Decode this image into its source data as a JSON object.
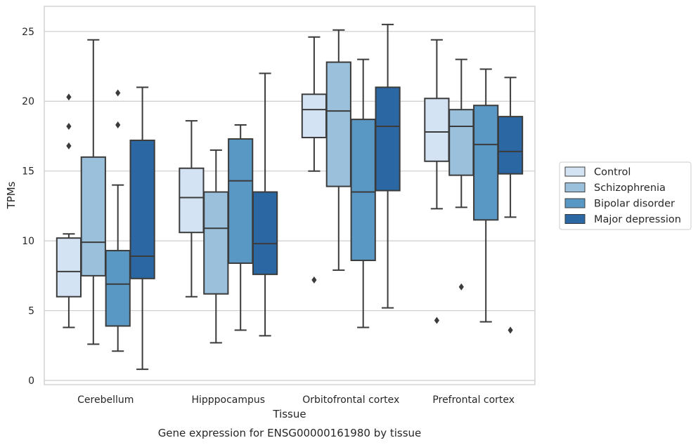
{
  "chart_data": {
    "type": "box",
    "xlabel": "Tissue",
    "ylabel": "TPMs",
    "caption": "Gene expression for ENSG00000161980 by tissue",
    "ylim": [
      -0.3,
      26.8
    ],
    "yticks": [
      0,
      5,
      10,
      15,
      20,
      25
    ],
    "grid": "horizontal",
    "legend_position": "right",
    "categories": [
      "Cerebellum",
      "Hipppocampus",
      "Orbitofrontal cortex",
      "Prefrontal cortex"
    ],
    "series": [
      {
        "name": "Control",
        "color": "#d4e3f3",
        "boxes": [
          {
            "whisker_low": 3.8,
            "q1": 6.0,
            "median": 7.8,
            "q3": 10.2,
            "whisker_high": 10.5,
            "outliers": [
              16.8,
              18.2,
              20.3
            ]
          },
          {
            "whisker_low": 6.0,
            "q1": 10.6,
            "median": 13.1,
            "q3": 15.2,
            "whisker_high": 18.6,
            "outliers": []
          },
          {
            "whisker_low": 15.0,
            "q1": 17.4,
            "median": 19.4,
            "q3": 20.5,
            "whisker_high": 24.6,
            "outliers": [
              7.2
            ]
          },
          {
            "whisker_low": 12.3,
            "q1": 15.7,
            "median": 17.8,
            "q3": 20.2,
            "whisker_high": 24.4,
            "outliers": [
              4.3
            ]
          }
        ]
      },
      {
        "name": "Schizophrenia",
        "color": "#9ac0db",
        "boxes": [
          {
            "whisker_low": 2.6,
            "q1": 7.5,
            "median": 9.9,
            "q3": 16.0,
            "whisker_high": 24.4,
            "outliers": []
          },
          {
            "whisker_low": 2.7,
            "q1": 6.2,
            "median": 10.9,
            "q3": 13.5,
            "whisker_high": 16.5,
            "outliers": []
          },
          {
            "whisker_low": 7.9,
            "q1": 13.9,
            "median": 19.3,
            "q3": 22.8,
            "whisker_high": 25.1,
            "outliers": []
          },
          {
            "whisker_low": 12.4,
            "q1": 14.7,
            "median": 18.2,
            "q3": 19.4,
            "whisker_high": 23.0,
            "outliers": [
              6.7
            ]
          }
        ]
      },
      {
        "name": "Bipolar disorder",
        "color": "#5998c5",
        "boxes": [
          {
            "whisker_low": 2.1,
            "q1": 3.9,
            "median": 6.9,
            "q3": 9.3,
            "whisker_high": 14.0,
            "outliers": [
              18.3,
              20.6
            ]
          },
          {
            "whisker_low": 3.6,
            "q1": 8.4,
            "median": 14.3,
            "q3": 17.3,
            "whisker_high": 18.3,
            "outliers": []
          },
          {
            "whisker_low": 3.8,
            "q1": 8.6,
            "median": 13.5,
            "q3": 18.7,
            "whisker_high": 23.0,
            "outliers": []
          },
          {
            "whisker_low": 4.2,
            "q1": 11.5,
            "median": 16.9,
            "q3": 19.7,
            "whisker_high": 22.3,
            "outliers": []
          }
        ]
      },
      {
        "name": "Major depression",
        "color": "#2a67a3",
        "boxes": [
          {
            "whisker_low": 0.8,
            "q1": 7.3,
            "median": 8.9,
            "q3": 17.2,
            "whisker_high": 21.0,
            "outliers": []
          },
          {
            "whisker_low": 3.2,
            "q1": 7.6,
            "median": 9.8,
            "q3": 13.5,
            "whisker_high": 22.0,
            "outliers": []
          },
          {
            "whisker_low": 5.2,
            "q1": 13.6,
            "median": 18.2,
            "q3": 21.0,
            "whisker_high": 25.5,
            "outliers": []
          },
          {
            "whisker_low": 11.7,
            "q1": 14.8,
            "median": 16.4,
            "q3": 18.9,
            "whisker_high": 21.7,
            "outliers": [
              3.6
            ]
          }
        ]
      }
    ]
  }
}
